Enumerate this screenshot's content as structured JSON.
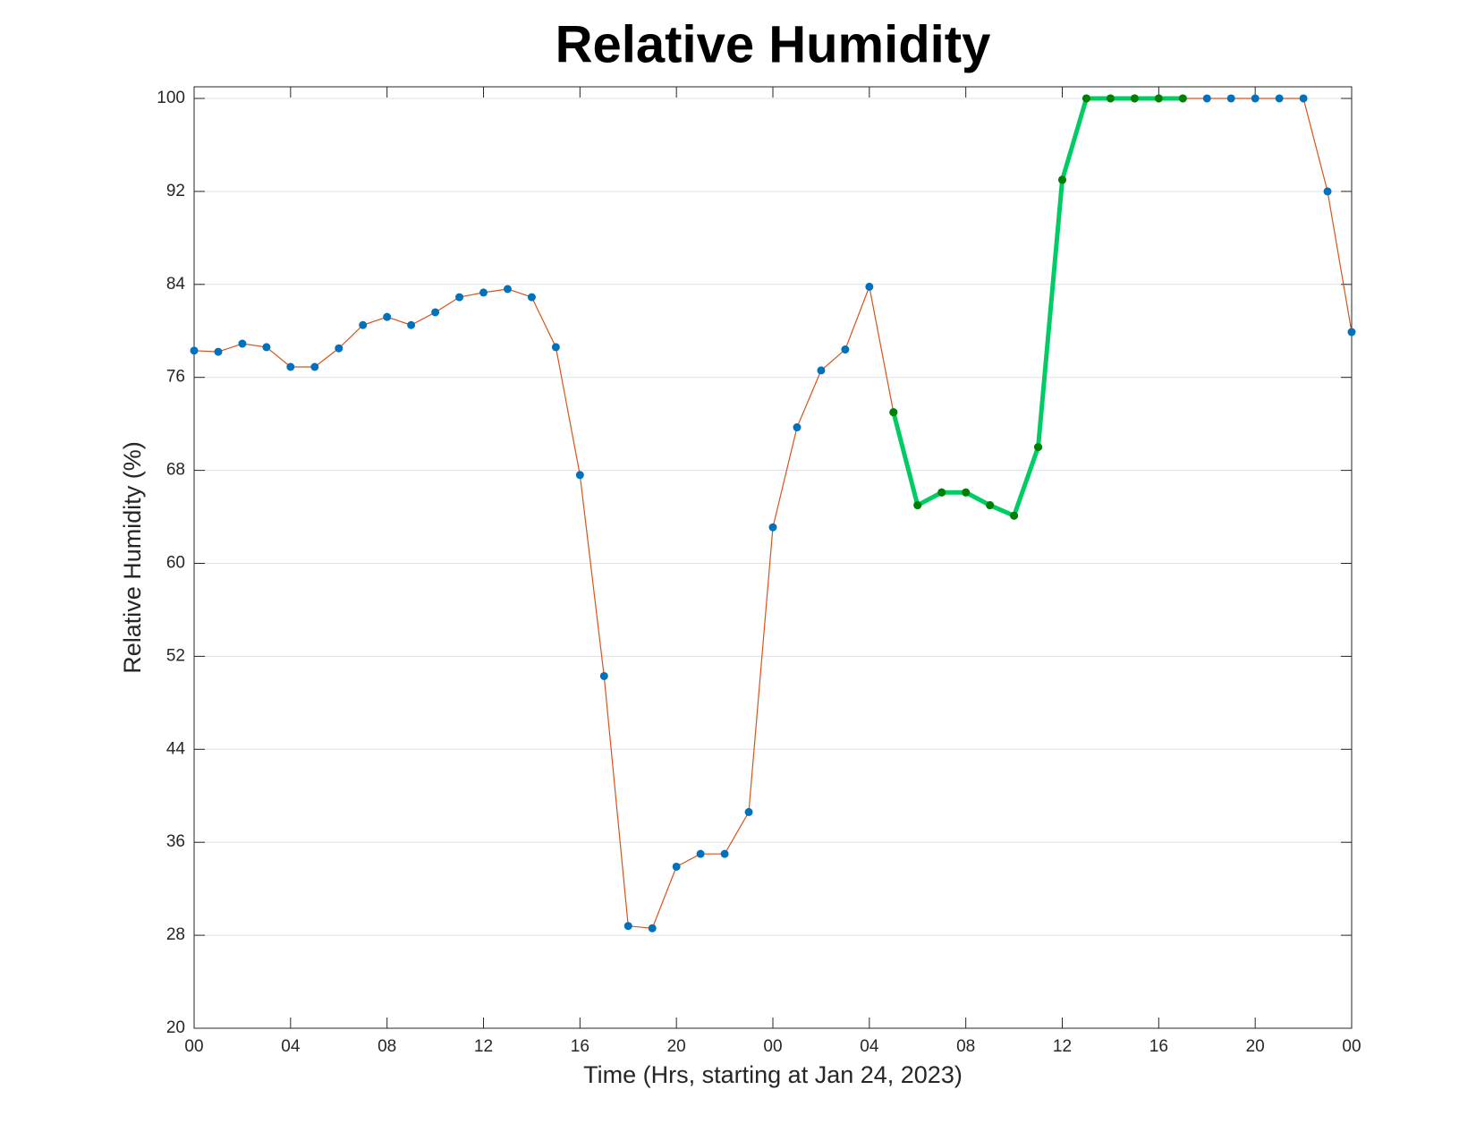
{
  "chart_data": {
    "type": "line",
    "title": "Relative Humidity",
    "x_label": "Time (Hrs, starting at Jan 24, 2023)",
    "y_label": "Relative Humidity (%)",
    "x": [
      0,
      1,
      2,
      3,
      4,
      5,
      6,
      7,
      8,
      9,
      10,
      11,
      12,
      13,
      14,
      15,
      16,
      17,
      18,
      19,
      20,
      21,
      22,
      23,
      24,
      25,
      26,
      27,
      28,
      29,
      30,
      31,
      32,
      33,
      34,
      35,
      36,
      37,
      38,
      39,
      40,
      41,
      42,
      43,
      44,
      45,
      46,
      47,
      48
    ],
    "series": [
      {
        "color": "#d95319",
        "marker_color": "#0072bd",
        "line_width": 1.2,
        "values": [
          78.3,
          78.2,
          78.9,
          78.6,
          76.9,
          76.9,
          78.5,
          80.5,
          81.2,
          80.5,
          81.6,
          82.9,
          83.3,
          83.6,
          82.9,
          78.6,
          67.6,
          50.3,
          28.8,
          28.6,
          33.9,
          35.0,
          35.0,
          38.6,
          63.1,
          71.7,
          76.6,
          78.4,
          83.8,
          73.0,
          65.0,
          66.1,
          66.1,
          65.0,
          64.1,
          70.0,
          93.0,
          100,
          100,
          100,
          100,
          100,
          100,
          100,
          100,
          100,
          100,
          92.0,
          79.9
        ]
      },
      {
        "color": "#00cc66",
        "marker_color": "#008000",
        "line_width": 5,
        "values": [
          null,
          null,
          null,
          null,
          null,
          null,
          null,
          null,
          null,
          null,
          null,
          null,
          null,
          null,
          null,
          null,
          null,
          null,
          null,
          null,
          null,
          null,
          null,
          null,
          null,
          null,
          null,
          null,
          null,
          73.0,
          65.0,
          66.1,
          66.1,
          65.0,
          64.1,
          70.0,
          93.0,
          100,
          100,
          100,
          100,
          100,
          null,
          null,
          null,
          null,
          null,
          null,
          null
        ]
      }
    ],
    "xlim": [
      0,
      48
    ],
    "xticks": [
      {
        "value": 0,
        "label": "00"
      },
      {
        "value": 4,
        "label": "04"
      },
      {
        "value": 8,
        "label": "08"
      },
      {
        "value": 12,
        "label": "12"
      },
      {
        "value": 16,
        "label": "16"
      },
      {
        "value": 20,
        "label": "20"
      },
      {
        "value": 24,
        "label": "00"
      },
      {
        "value": 28,
        "label": "04"
      },
      {
        "value": 32,
        "label": "08"
      },
      {
        "value": 36,
        "label": "12"
      },
      {
        "value": 40,
        "label": "16"
      },
      {
        "value": 44,
        "label": "20"
      },
      {
        "value": 48,
        "label": "00"
      }
    ],
    "ylim": [
      20,
      101
    ],
    "yticks": [
      20,
      28,
      36,
      44,
      52,
      60,
      68,
      76,
      84,
      92,
      100
    ],
    "grid": true
  }
}
